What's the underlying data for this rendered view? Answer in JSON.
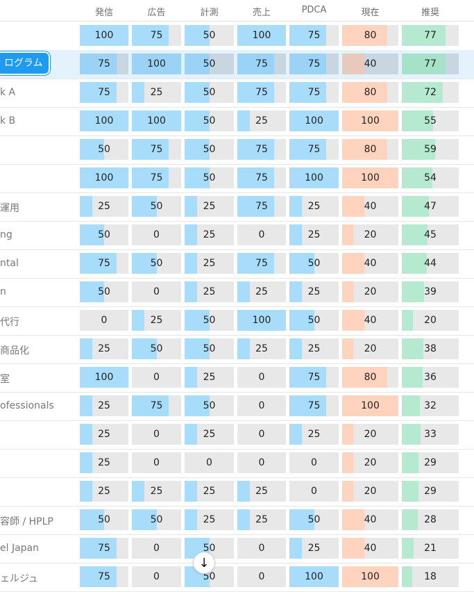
{
  "columns": [
    "発信",
    "広告",
    "計測",
    "売上",
    "PDCA",
    "現在",
    "推奨"
  ],
  "rows": [
    {
      "label": "",
      "v": [
        100,
        75,
        50,
        100,
        75,
        80,
        77
      ]
    },
    {
      "label": "ログラム",
      "v": [
        75,
        100,
        50,
        75,
        75,
        40,
        77
      ],
      "selected": true
    },
    {
      "label": "k A",
      "v": [
        75,
        25,
        50,
        75,
        75,
        80,
        72
      ]
    },
    {
      "label": "k B",
      "v": [
        100,
        100,
        50,
        25,
        100,
        100,
        55
      ]
    },
    {
      "label": "",
      "v": [
        50,
        75,
        50,
        75,
        75,
        80,
        59
      ]
    },
    {
      "label": "",
      "v": [
        100,
        75,
        50,
        75,
        100,
        100,
        54
      ]
    },
    {
      "label": "運用",
      "v": [
        25,
        50,
        25,
        75,
        25,
        40,
        47
      ]
    },
    {
      "label": "ng",
      "v": [
        50,
        0,
        25,
        0,
        25,
        20,
        45
      ]
    },
    {
      "label": "ntal",
      "v": [
        75,
        50,
        25,
        75,
        50,
        40,
        44
      ]
    },
    {
      "label": "n",
      "v": [
        50,
        0,
        25,
        25,
        25,
        20,
        39
      ]
    },
    {
      "label": "代行",
      "v": [
        0,
        25,
        50,
        100,
        50,
        40,
        20
      ]
    },
    {
      "label": "商品化",
      "v": [
        25,
        50,
        50,
        25,
        25,
        20,
        38
      ]
    },
    {
      "label": "室",
      "v": [
        100,
        0,
        25,
        0,
        75,
        80,
        36
      ]
    },
    {
      "label": "ofessionals",
      "v": [
        25,
        75,
        50,
        0,
        75,
        100,
        32
      ]
    },
    {
      "label": "",
      "v": [
        25,
        0,
        25,
        0,
        25,
        20,
        33
      ]
    },
    {
      "label": "",
      "v": [
        25,
        0,
        0,
        0,
        0,
        20,
        29
      ]
    },
    {
      "label": "",
      "v": [
        25,
        25,
        25,
        25,
        0,
        20,
        29
      ]
    },
    {
      "label": "容師 / HPLP",
      "v": [
        50,
        50,
        25,
        25,
        50,
        40,
        28
      ]
    },
    {
      "label": "el Japan",
      "v": [
        75,
        0,
        50,
        0,
        25,
        40,
        21
      ]
    },
    {
      "label": "ェルジュ",
      "v": [
        75,
        0,
        50,
        0,
        100,
        100,
        18
      ]
    }
  ],
  "colors": {
    "blue": "#a8dcfb",
    "orange": "#ffd3bd",
    "green": "#b6ead0",
    "empty": "#e8e8e8",
    "selected_row": "#e3f2fd",
    "pill": "#1e9bf0"
  },
  "scroll_button": {
    "icon": "arrow-down-icon",
    "glyph": "↓"
  }
}
